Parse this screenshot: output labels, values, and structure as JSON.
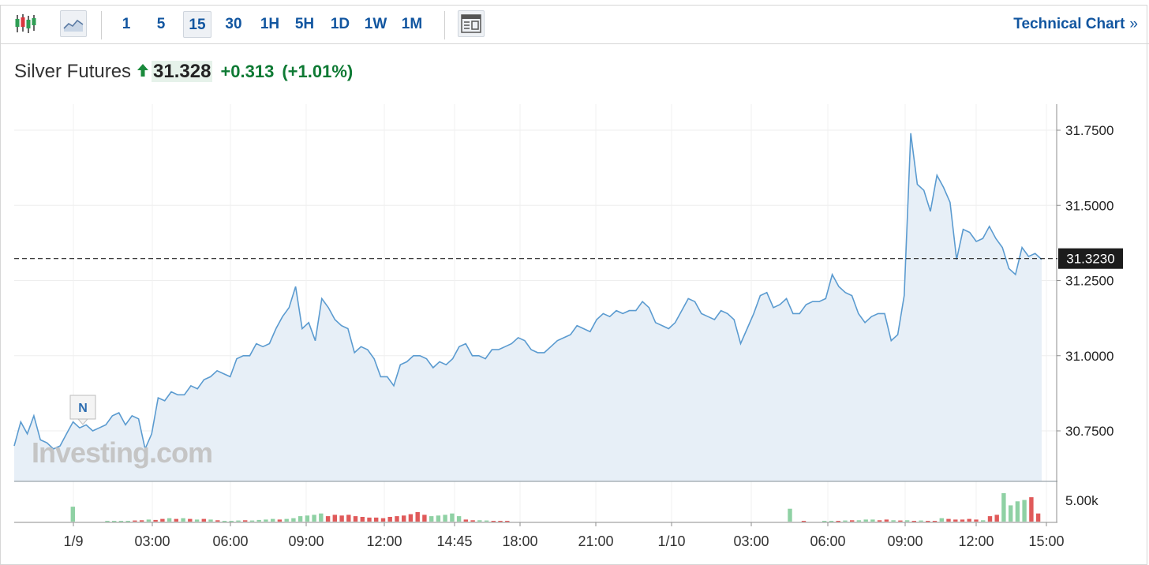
{
  "toolbar": {
    "candle_icon": "candlestick-chart-icon",
    "area_icon": "area-chart-icon",
    "intervals": [
      "1",
      "5",
      "15",
      "30",
      "1H",
      "5H",
      "1D",
      "1W",
      "1M"
    ],
    "active_interval": "15",
    "layout_icon": "layout-icon",
    "technical_link": "Technical Chart",
    "technical_chevron": "»"
  },
  "quote": {
    "name": "Silver Futures",
    "price": "31.328",
    "change": "+0.313",
    "change_pct": "(+1.01%)",
    "direction_icon": "up-arrow-icon"
  },
  "colors": {
    "line": "#5b9bd0",
    "fill": "#e7eff7",
    "up_volume": "#8fd1a4",
    "down_volume": "#e05a5a",
    "link": "#1256a0",
    "positive": "#0e7a34"
  },
  "chart_data": {
    "type": "area",
    "title": "Silver Futures",
    "current_value_label": "31.3230",
    "current_value": 31.323,
    "y_ticks": [
      "31.7500",
      "31.5000",
      "31.2500",
      "31.0000",
      "30.7500"
    ],
    "ylim": [
      30.6,
      31.8
    ],
    "x_tick_labels": [
      "1/9",
      "03:00",
      "06:00",
      "09:00",
      "12:00",
      "14:45",
      "18:00",
      "21:00",
      "1/10",
      "03:00",
      "06:00",
      "09:00",
      "12:00",
      "15:00"
    ],
    "marker_label": "N",
    "watermark": "Investing.com",
    "price_series": [
      30.7,
      30.78,
      30.74,
      30.8,
      30.72,
      30.71,
      30.69,
      30.7,
      30.74,
      30.78,
      30.76,
      30.77,
      30.75,
      30.76,
      30.77,
      30.8,
      30.81,
      30.77,
      30.8,
      30.79,
      30.69,
      30.74,
      30.86,
      30.85,
      30.88,
      30.87,
      30.87,
      30.9,
      30.89,
      30.92,
      30.93,
      30.95,
      30.94,
      30.93,
      30.99,
      31.0,
      31.0,
      31.04,
      31.03,
      31.04,
      31.09,
      31.13,
      31.16,
      31.23,
      31.09,
      31.11,
      31.05,
      31.19,
      31.16,
      31.12,
      31.1,
      31.09,
      31.01,
      31.03,
      31.02,
      30.99,
      30.93,
      30.93,
      30.9,
      30.97,
      30.98,
      31.0,
      31.0,
      30.99,
      30.96,
      30.98,
      30.97,
      30.99,
      31.03,
      31.04,
      31.0,
      31.0,
      30.99,
      31.02,
      31.02,
      31.03,
      31.04,
      31.06,
      31.05,
      31.02,
      31.01,
      31.01,
      31.03,
      31.05,
      31.06,
      31.07,
      31.1,
      31.09,
      31.08,
      31.12,
      31.14,
      31.13,
      31.15,
      31.14,
      31.15,
      31.15,
      31.18,
      31.16,
      31.11,
      31.1,
      31.09,
      31.11,
      31.15,
      31.19,
      31.18,
      31.14,
      31.13,
      31.12,
      31.15,
      31.14,
      31.12,
      31.04,
      31.09,
      31.14,
      31.2,
      31.21,
      31.16,
      31.17,
      31.19,
      31.14,
      31.14,
      31.17,
      31.18,
      31.18,
      31.19,
      31.27,
      31.23,
      31.21,
      31.2,
      31.14,
      31.11,
      31.13,
      31.14,
      31.14,
      31.05,
      31.07,
      31.2,
      31.74,
      31.57,
      31.55,
      31.48,
      31.6,
      31.56,
      31.51,
      31.32,
      31.42,
      31.41,
      31.38,
      31.39,
      31.43,
      31.39,
      31.36,
      31.29,
      31.27,
      31.36,
      31.33,
      31.34,
      31.32
    ],
    "volume_series": [
      {
        "v": 0,
        "up": true
      },
      {
        "v": 0,
        "up": true
      },
      {
        "v": 0,
        "up": true
      },
      {
        "v": 0,
        "up": true
      },
      {
        "v": 0,
        "up": true
      },
      {
        "v": 0,
        "up": true
      },
      {
        "v": 0,
        "up": true
      },
      {
        "v": 0,
        "up": true
      },
      {
        "v": 1.1,
        "up": true
      },
      {
        "v": 0,
        "up": true
      },
      {
        "v": 0,
        "up": true
      },
      {
        "v": 0,
        "up": true
      },
      {
        "v": 0,
        "up": true
      },
      {
        "v": 0.06,
        "up": true
      },
      {
        "v": 0.06,
        "up": true
      },
      {
        "v": 0.06,
        "up": true
      },
      {
        "v": 0.06,
        "up": true
      },
      {
        "v": 0.08,
        "up": false
      },
      {
        "v": 0.1,
        "up": false
      },
      {
        "v": 0.15,
        "up": true
      },
      {
        "v": 0.12,
        "up": false
      },
      {
        "v": 0.2,
        "up": false
      },
      {
        "v": 0.25,
        "up": true
      },
      {
        "v": 0.2,
        "up": false
      },
      {
        "v": 0.25,
        "up": true
      },
      {
        "v": 0.2,
        "up": false
      },
      {
        "v": 0.15,
        "up": true
      },
      {
        "v": 0.2,
        "up": false
      },
      {
        "v": 0.15,
        "up": true
      },
      {
        "v": 0.1,
        "up": false
      },
      {
        "v": 0.06,
        "up": true
      },
      {
        "v": 0.06,
        "up": true
      },
      {
        "v": 0.08,
        "up": true
      },
      {
        "v": 0.1,
        "up": false
      },
      {
        "v": 0.08,
        "up": true
      },
      {
        "v": 0.12,
        "up": true
      },
      {
        "v": 0.15,
        "up": true
      },
      {
        "v": 0.2,
        "up": true
      },
      {
        "v": 0.15,
        "up": false
      },
      {
        "v": 0.2,
        "up": true
      },
      {
        "v": 0.25,
        "up": true
      },
      {
        "v": 0.4,
        "up": true
      },
      {
        "v": 0.45,
        "up": true
      },
      {
        "v": 0.5,
        "up": true
      },
      {
        "v": 0.6,
        "up": true
      },
      {
        "v": 0.4,
        "up": false
      },
      {
        "v": 0.5,
        "up": false
      },
      {
        "v": 0.45,
        "up": false
      },
      {
        "v": 0.5,
        "up": false
      },
      {
        "v": 0.4,
        "up": false
      },
      {
        "v": 0.35,
        "up": false
      },
      {
        "v": 0.3,
        "up": false
      },
      {
        "v": 0.3,
        "up": false
      },
      {
        "v": 0.25,
        "up": false
      },
      {
        "v": 0.35,
        "up": false
      },
      {
        "v": 0.4,
        "up": false
      },
      {
        "v": 0.45,
        "up": false
      },
      {
        "v": 0.55,
        "up": false
      },
      {
        "v": 0.7,
        "up": false
      },
      {
        "v": 0.5,
        "up": false
      },
      {
        "v": 0.4,
        "up": true
      },
      {
        "v": 0.45,
        "up": true
      },
      {
        "v": 0.5,
        "up": true
      },
      {
        "v": 0.6,
        "up": true
      },
      {
        "v": 0.4,
        "up": true
      },
      {
        "v": 0.15,
        "up": false
      },
      {
        "v": 0.1,
        "up": false
      },
      {
        "v": 0.1,
        "up": true
      },
      {
        "v": 0.08,
        "up": true
      },
      {
        "v": 0.06,
        "up": false
      },
      {
        "v": 0.06,
        "up": false
      },
      {
        "v": 0.06,
        "up": false
      },
      {
        "v": 0,
        "up": true
      },
      {
        "v": 0,
        "up": true
      },
      {
        "v": 0,
        "up": true
      },
      {
        "v": 0,
        "up": true
      },
      {
        "v": 0,
        "up": true
      },
      {
        "v": 0,
        "up": true
      },
      {
        "v": 0,
        "up": true
      },
      {
        "v": 0,
        "up": true
      },
      {
        "v": 0,
        "up": true
      },
      {
        "v": 0,
        "up": true
      },
      {
        "v": 0,
        "up": true
      },
      {
        "v": 0,
        "up": true
      },
      {
        "v": 0,
        "up": true
      },
      {
        "v": 0,
        "up": true
      },
      {
        "v": 0,
        "up": true
      },
      {
        "v": 0,
        "up": true
      },
      {
        "v": 0,
        "up": true
      },
      {
        "v": 0,
        "up": true
      },
      {
        "v": 0,
        "up": true
      },
      {
        "v": 0,
        "up": true
      },
      {
        "v": 0,
        "up": true
      },
      {
        "v": 0,
        "up": true
      },
      {
        "v": 0,
        "up": true
      },
      {
        "v": 0,
        "up": true
      },
      {
        "v": 0,
        "up": true
      },
      {
        "v": 0,
        "up": true
      },
      {
        "v": 0,
        "up": true
      },
      {
        "v": 0,
        "up": true
      },
      {
        "v": 0,
        "up": true
      },
      {
        "v": 0,
        "up": true
      },
      {
        "v": 0,
        "up": true
      },
      {
        "v": 0,
        "up": true
      },
      {
        "v": 0,
        "up": true
      },
      {
        "v": 0,
        "up": true
      },
      {
        "v": 0,
        "up": true
      },
      {
        "v": 0,
        "up": true
      },
      {
        "v": 0,
        "up": true
      },
      {
        "v": 0,
        "up": true
      },
      {
        "v": 0,
        "up": true
      },
      {
        "v": 0,
        "up": true
      },
      {
        "v": 0.95,
        "up": true
      },
      {
        "v": 0,
        "up": true
      },
      {
        "v": 0.06,
        "up": false
      },
      {
        "v": 0,
        "up": true
      },
      {
        "v": 0,
        "up": true
      },
      {
        "v": 0.06,
        "up": true
      },
      {
        "v": 0.06,
        "up": true
      },
      {
        "v": 0.06,
        "up": false
      },
      {
        "v": 0.08,
        "up": true
      },
      {
        "v": 0.1,
        "up": false
      },
      {
        "v": 0.1,
        "up": true
      },
      {
        "v": 0.15,
        "up": true
      },
      {
        "v": 0.15,
        "up": true
      },
      {
        "v": 0.1,
        "up": false
      },
      {
        "v": 0.15,
        "up": false
      },
      {
        "v": 0.1,
        "up": true
      },
      {
        "v": 0.08,
        "up": false
      },
      {
        "v": 0.1,
        "up": true
      },
      {
        "v": 0.06,
        "up": false
      },
      {
        "v": 0.08,
        "up": true
      },
      {
        "v": 0.06,
        "up": false
      },
      {
        "v": 0.06,
        "up": false
      },
      {
        "v": 0.25,
        "up": true
      },
      {
        "v": 0.2,
        "up": false
      },
      {
        "v": 0.15,
        "up": false
      },
      {
        "v": 0.15,
        "up": false
      },
      {
        "v": 0.2,
        "up": false
      },
      {
        "v": 0.15,
        "up": false
      },
      {
        "v": 0.1,
        "up": true
      },
      {
        "v": 0.4,
        "up": false
      },
      {
        "v": 0.5,
        "up": false
      },
      {
        "v": 2.1,
        "up": true
      },
      {
        "v": 1.2,
        "up": true
      },
      {
        "v": 1.5,
        "up": true
      },
      {
        "v": 1.6,
        "up": true
      },
      {
        "v": 1.8,
        "up": false
      },
      {
        "v": 0.6,
        "up": false
      }
    ],
    "volume_tick_label": "5.00k",
    "volume_ylim": [
      0,
      5.0
    ]
  }
}
